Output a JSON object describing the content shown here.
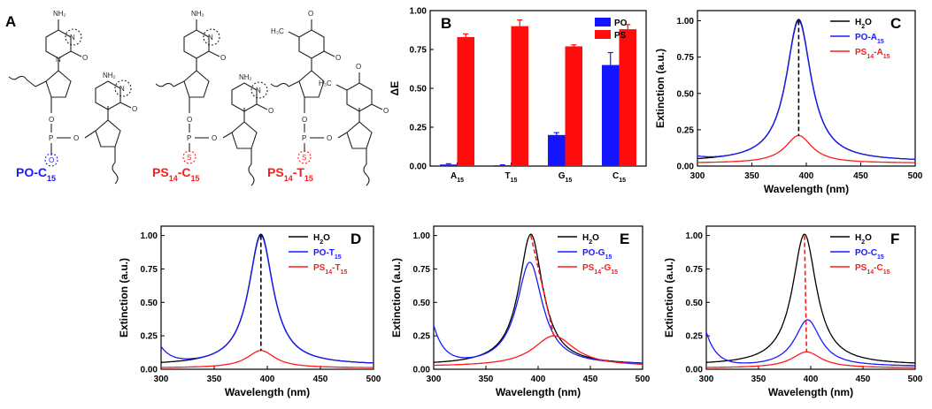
{
  "colors": {
    "black": "#000000",
    "blue": "#1a1aff",
    "red": "#ff1a1a",
    "bar_blue": "#1414ff",
    "bar_red": "#ff0d0d"
  },
  "panel_a": {
    "letter": "A",
    "atoms": {
      "nh2": "NH₂",
      "n": "N",
      "o": "O",
      "p": "P",
      "s": "S",
      "ch3": "H₃C"
    },
    "molecules": [
      {
        "name": "PO-C",
        "sub": "15",
        "pre_sub": "",
        "color": "#1a1aff"
      },
      {
        "name": "PS",
        "sub": "15",
        "pre_sub": "14",
        "mid": "-C",
        "color": "#ff1a1a"
      },
      {
        "name": "PS",
        "sub": "15",
        "pre_sub": "14",
        "mid": "-T",
        "color": "#ff1a1a"
      }
    ]
  },
  "chart_data": [
    {
      "panel": "B",
      "type": "bar",
      "ylabel": "ΔE",
      "categories": [
        {
          "base": "A",
          "sub": "15"
        },
        {
          "base": "T",
          "sub": "15"
        },
        {
          "base": "G",
          "sub": "15"
        },
        {
          "base": "C",
          "sub": "15"
        }
      ],
      "series": [
        {
          "name": "PO",
          "color": "#1414ff",
          "values": [
            0.01,
            0.005,
            0.2,
            0.65
          ],
          "errors": [
            0.005,
            0.003,
            0.015,
            0.08
          ]
        },
        {
          "name": "PS",
          "color": "#ff0d0d",
          "values": [
            0.83,
            0.9,
            0.77,
            0.88
          ],
          "errors": [
            0.02,
            0.04,
            0.01,
            0.03
          ]
        }
      ],
      "ylim": [
        0,
        1.0
      ],
      "yticks": [
        "0.00",
        "0.25",
        "0.50",
        "0.75",
        "1.00"
      ]
    },
    {
      "panel": "C",
      "type": "line",
      "xlabel": "Wavelength (nm)",
      "ylabel": "Extinction (a.u.)",
      "xlim": [
        300,
        500
      ],
      "ylim": [
        0,
        1.07
      ],
      "xticks": [
        "300",
        "350",
        "400",
        "450",
        "500"
      ],
      "yticks": [
        "0.00",
        "0.25",
        "0.50",
        "0.75",
        "1.00"
      ],
      "legend": [
        {
          "base": "H",
          "sub": "2",
          "rest": "O"
        },
        {
          "base": "PO-A",
          "sub": "15"
        },
        {
          "base": "PS",
          "sub": "14",
          "rest": "-A",
          "sub2": "15"
        }
      ],
      "series": [
        {
          "name": "H2O",
          "color": "#000000",
          "peak_x": 393,
          "peak_y": 1.01,
          "width": 28,
          "baseline": 0.03,
          "uv": 0.0
        },
        {
          "name": "PO-A15",
          "color": "#1a1aff",
          "peak_x": 393,
          "peak_y": 1.0,
          "width": 28,
          "baseline": 0.03,
          "uv": 0.02
        },
        {
          "name": "PS14-A15",
          "color": "#ff1a1a",
          "peak_x": 393,
          "peak_y": 0.21,
          "width": 30,
          "baseline": 0.02,
          "uv": 0.0
        }
      ],
      "markers": [
        {
          "x1": 393,
          "y1": 1.0,
          "x2": 393,
          "y2": 0.21
        }
      ]
    },
    {
      "panel": "D",
      "type": "line",
      "xlabel": "Wavelength (nm)",
      "ylabel": "Extinction (a.u.)",
      "xlim": [
        300,
        500
      ],
      "ylim": [
        0,
        1.07
      ],
      "xticks": [
        "300",
        "350",
        "400",
        "450",
        "500"
      ],
      "yticks": [
        "0.00",
        "0.25",
        "0.50",
        "0.75",
        "1.00"
      ],
      "legend": [
        {
          "base": "H",
          "sub": "2",
          "rest": "O"
        },
        {
          "base": "PO-T",
          "sub": "15"
        },
        {
          "base": "PS",
          "sub": "14",
          "rest": "-T",
          "sub2": "15"
        }
      ],
      "series": [
        {
          "name": "H2O",
          "color": "#000000",
          "peak_x": 394,
          "peak_y": 1.01,
          "width": 28,
          "baseline": 0.03,
          "uv": 0.0
        },
        {
          "name": "PO-T15",
          "color": "#1a1aff",
          "peak_x": 394,
          "peak_y": 1.0,
          "width": 28,
          "baseline": 0.03,
          "uv": 0.12
        },
        {
          "name": "PS14-T15",
          "color": "#ff1a1a",
          "peak_x": 394,
          "peak_y": 0.14,
          "width": 32,
          "baseline": 0.01,
          "uv": 0.0
        }
      ],
      "markers": [
        {
          "x1": 394,
          "y1": 1.0,
          "x2": 394,
          "y2": 0.14
        }
      ]
    },
    {
      "panel": "E",
      "type": "line",
      "xlabel": "Wavelength (nm)",
      "ylabel": "Extinction (a.u.)",
      "xlim": [
        300,
        500
      ],
      "ylim": [
        0,
        1.07
      ],
      "xticks": [
        "300",
        "350",
        "400",
        "450",
        "500"
      ],
      "yticks": [
        "0.00",
        "0.25",
        "0.50",
        "0.75",
        "1.00"
      ],
      "legend": [
        {
          "base": "H",
          "sub": "2",
          "rest": "O"
        },
        {
          "base": "PO-G",
          "sub": "15"
        },
        {
          "base": "PS",
          "sub": "14",
          "rest": "-G",
          "sub2": "15"
        }
      ],
      "series": [
        {
          "name": "H2O",
          "color": "#000000",
          "peak_x": 393,
          "peak_y": 1.01,
          "width": 28,
          "baseline": 0.03,
          "uv": 0.0
        },
        {
          "name": "PO-G15",
          "color": "#1a1aff",
          "peak_x": 392,
          "peak_y": 0.8,
          "width": 30,
          "baseline": 0.03,
          "uv": 0.28
        },
        {
          "name": "PS14-G15",
          "color": "#ff1a1a",
          "peak_x": 415,
          "peak_y": 0.25,
          "width": 48,
          "baseline": 0.02,
          "uv": 0.0
        }
      ],
      "markers": [
        {
          "x1": 393,
          "y1": 1.0,
          "x2": 415,
          "y2": 0.25
        }
      ]
    },
    {
      "panel": "F",
      "type": "line",
      "xlabel": "Wavelength (nm)",
      "ylabel": "Extinction (a.u.)",
      "xlim": [
        300,
        500
      ],
      "ylim": [
        0,
        1.07
      ],
      "xticks": [
        "300",
        "350",
        "400",
        "450",
        "500"
      ],
      "yticks": [
        "0.00",
        "0.25",
        "0.50",
        "0.75",
        "1.00"
      ],
      "legend": [
        {
          "base": "H",
          "sub": "2",
          "rest": "O"
        },
        {
          "base": "PO-C",
          "sub": "15"
        },
        {
          "base": "PS",
          "sub": "14",
          "rest": "-C",
          "sub2": "15"
        }
      ],
      "series": [
        {
          "name": "H2O",
          "color": "#000000",
          "peak_x": 394,
          "peak_y": 1.01,
          "width": 28,
          "baseline": 0.03,
          "uv": 0.0
        },
        {
          "name": "PO-C15",
          "color": "#1a1aff",
          "peak_x": 397,
          "peak_y": 0.37,
          "width": 30,
          "baseline": 0.02,
          "uv": 0.25
        },
        {
          "name": "PS14-C15",
          "color": "#ff1a1a",
          "peak_x": 396,
          "peak_y": 0.13,
          "width": 34,
          "baseline": 0.01,
          "uv": 0.0
        }
      ],
      "markers": [
        {
          "x1": 394,
          "y1": 1.0,
          "x2": 396,
          "y2": 0.13
        }
      ]
    }
  ]
}
